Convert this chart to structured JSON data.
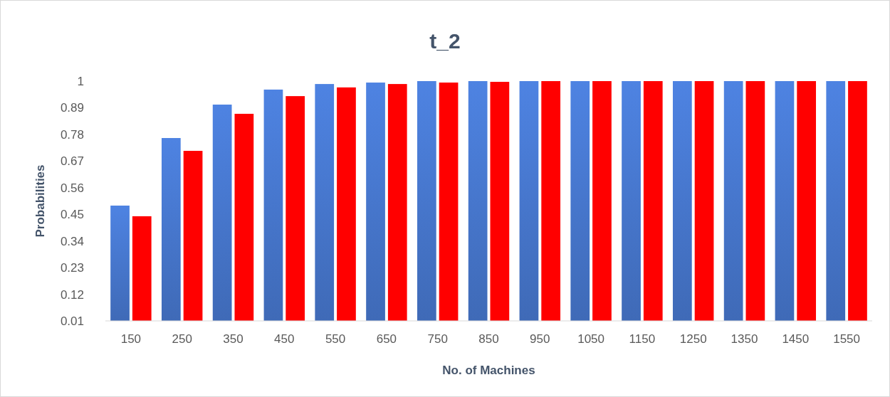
{
  "chart_data": {
    "type": "bar",
    "title": "t_2",
    "xlabel": "No. of Machines",
    "ylabel": "Probabilities",
    "categories": [
      "150",
      "250",
      "350",
      "450",
      "550",
      "650",
      "750",
      "850",
      "950",
      "1050",
      "1150",
      "1250",
      "1350",
      "1450",
      "1550"
    ],
    "series": [
      {
        "color": "#4472c4",
        "values": [
          0.486,
          0.765,
          0.903,
          0.965,
          0.988,
          0.994,
          1,
          1,
          1,
          1,
          1,
          1,
          1,
          1,
          1
        ]
      },
      {
        "color": "#ff0000",
        "values": [
          0.442,
          0.712,
          0.865,
          0.938,
          0.974,
          0.988,
          0.994,
          0.997,
          1,
          1,
          1,
          1,
          1,
          1,
          1
        ]
      }
    ],
    "ylim": [
      0.01,
      1
    ],
    "yticks": [
      0.01,
      0.12,
      0.23,
      0.34,
      0.45,
      0.56,
      0.67,
      0.78,
      0.89,
      1
    ],
    "grid": false
  }
}
